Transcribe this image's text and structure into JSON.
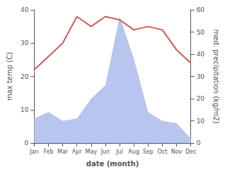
{
  "chart_data": {
    "type": "line",
    "categories": [
      "Jan",
      "Feb",
      "Mar",
      "Apr",
      "May",
      "Jun",
      "Jul",
      "Aug",
      "Sep",
      "Oct",
      "Nov",
      "Dec"
    ],
    "series": [
      {
        "type": "area",
        "color": "#b8c5ee",
        "axis": "y2",
        "values": [
          11,
          14,
          10,
          11,
          20,
          26,
          57,
          38,
          14,
          10,
          9,
          2
        ]
      },
      {
        "type": "line",
        "color": "#cd5c5c",
        "values": [
          22,
          26,
          30,
          38,
          35,
          38,
          37,
          34,
          35,
          34,
          28,
          24
        ]
      }
    ],
    "x_label": "date (month)",
    "y_label": "max temp (C)",
    "y2_label": "med. precipitation (kg/m2)",
    "ylim": [
      0,
      40
    ],
    "yticks": [
      0,
      10,
      20,
      30,
      40
    ],
    "y2lim": [
      0,
      60
    ],
    "y2ticks": [
      0,
      10,
      20,
      30,
      40,
      50,
      60
    ],
    "grid": false
  }
}
